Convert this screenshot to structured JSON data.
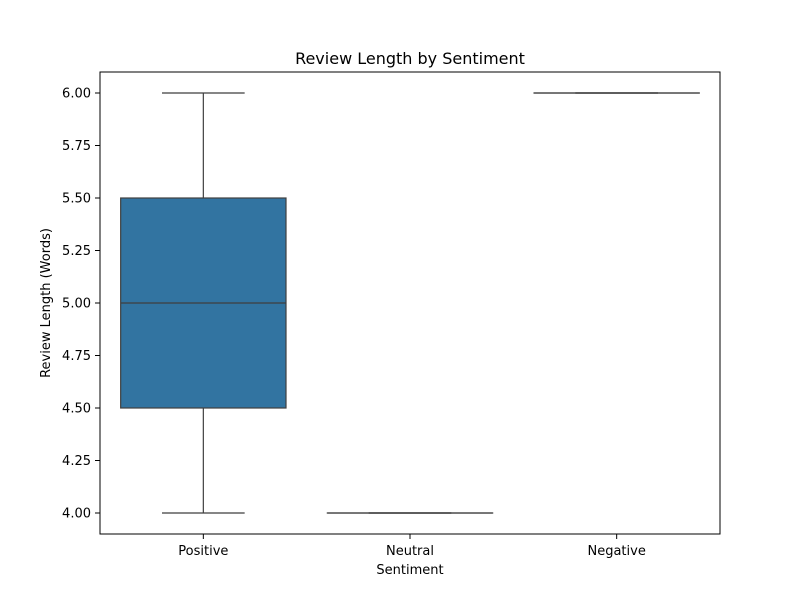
{
  "chart_data": {
    "type": "box",
    "title": "Review Length by Sentiment",
    "xlabel": "Sentiment",
    "ylabel": "Review Length (Words)",
    "categories": [
      "Positive",
      "Neutral",
      "Negative"
    ],
    "boxes": [
      {
        "category": "Positive",
        "min": 4.0,
        "q1": 4.5,
        "median": 5.0,
        "q3": 5.5,
        "max": 6.0
      },
      {
        "category": "Neutral",
        "min": 4.0,
        "q1": 4.0,
        "median": 4.0,
        "q3": 4.0,
        "max": 4.0
      },
      {
        "category": "Negative",
        "min": 6.0,
        "q1": 6.0,
        "median": 6.0,
        "q3": 6.0,
        "max": 6.0
      }
    ],
    "yticks": [
      "4.00",
      "4.25",
      "4.50",
      "4.75",
      "5.00",
      "5.25",
      "5.50",
      "5.75",
      "6.00"
    ],
    "ylim": [
      3.9,
      6.1
    ],
    "grid": false,
    "box_color": "#3274a1",
    "line_color": "#3f3f3f"
  }
}
